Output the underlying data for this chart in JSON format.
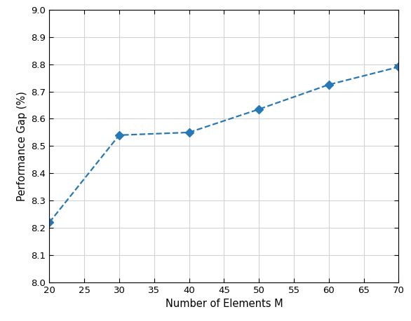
{
  "x": [
    20,
    30,
    40,
    50,
    60,
    70
  ],
  "y": [
    8.22,
    8.54,
    8.55,
    8.635,
    8.725,
    8.79
  ],
  "line_color": "#2878b5",
  "marker": "D",
  "marker_size": 6,
  "line_style": "--",
  "line_width": 1.6,
  "xlabel": "Number of Elements M",
  "ylabel": "Performance Gap (%)",
  "xlim": [
    20,
    70
  ],
  "ylim": [
    8.0,
    9.0
  ],
  "xticks": [
    20,
    25,
    30,
    35,
    40,
    45,
    50,
    55,
    60,
    65,
    70
  ],
  "yticks": [
    8.0,
    8.1,
    8.2,
    8.3,
    8.4,
    8.5,
    8.6,
    8.7,
    8.8,
    8.9,
    9.0
  ],
  "grid": true,
  "background_color": "#ffffff",
  "xlabel_fontsize": 10.5,
  "ylabel_fontsize": 10.5,
  "tick_fontsize": 9.5,
  "grid_color": "#d3d3d3",
  "grid_linewidth": 0.8
}
